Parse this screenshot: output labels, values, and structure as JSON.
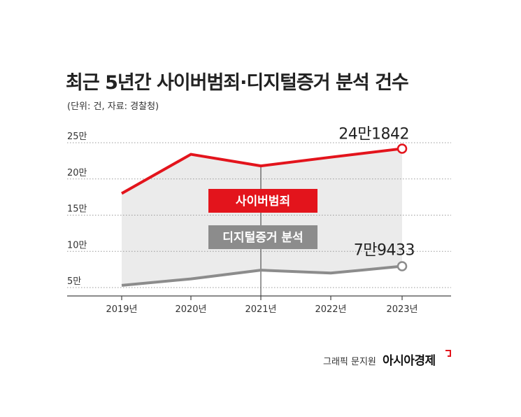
{
  "title": "최근 5년간 사이버범죄·디지털증거 분석 건수",
  "subtitle": "(단위: 건, 자료: 경찰청)",
  "credit": "그래픽 문지원",
  "brand": "아시아경제",
  "colors": {
    "cyber": "#e3141c",
    "digital": "#8c8c8c",
    "shade": "#ebebeb"
  },
  "chart_data": {
    "type": "line",
    "categories": [
      "2019년",
      "2020년",
      "2021년",
      "2022년",
      "2023년"
    ],
    "y_tick_labels": [
      "5만",
      "10만",
      "15만",
      "20만",
      "25만"
    ],
    "y_tick_values": [
      50000,
      100000,
      150000,
      200000,
      250000
    ],
    "ylim": [
      50000,
      250000
    ],
    "grid": true,
    "series": [
      {
        "name": "사이버범죄",
        "values": [
          180000,
          234000,
          218000,
          230000,
          241842
        ],
        "end_label": "24만1842"
      },
      {
        "name": "디지털증거 분석",
        "values": [
          53000,
          62000,
          74000,
          70000,
          79433
        ],
        "end_label": "7만9433"
      }
    ]
  }
}
